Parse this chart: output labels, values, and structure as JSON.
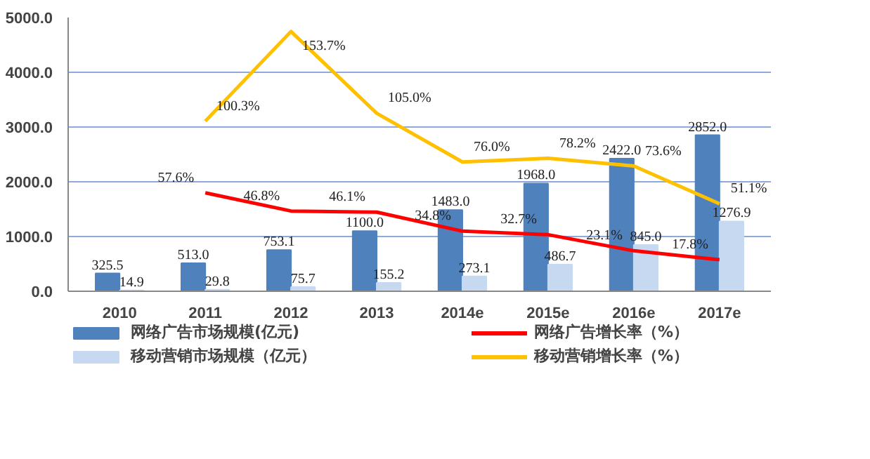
{
  "chart_data": {
    "type": "bar",
    "categories": [
      "2010",
      "2011",
      "2012",
      "2013",
      "2014e",
      "2015e",
      "2016e",
      "2017e"
    ],
    "series": [
      {
        "name": "网络广告市场规模(亿元)",
        "color": "#4f81bd",
        "values": [
          325.5,
          513.0,
          753.1,
          1100.0,
          1483.0,
          1968.0,
          2422.0,
          2852.0
        ],
        "value_labels": [
          "325.5",
          "513.0",
          "753.1",
          "1100.0",
          "1483.0",
          "1968.0",
          "2422.0",
          "2852.0"
        ]
      },
      {
        "name": "移动营销市场规模（亿元）",
        "color": "#c6d9f1",
        "values": [
          14.9,
          29.8,
          75.7,
          155.2,
          273.1,
          486.7,
          845.0,
          1276.9
        ],
        "value_labels": [
          "14.9",
          "29.8",
          "75.7",
          "155.2",
          "273.1",
          "486.7",
          "845.0",
          "1276.9"
        ]
      },
      {
        "name": "网络广告增长率（%）",
        "type": "line",
        "axis": "y2",
        "color": "#ff0000",
        "values": [
          null,
          57.6,
          46.8,
          46.1,
          34.8,
          32.7,
          23.1,
          17.8
        ],
        "value_labels": [
          null,
          "57.6%",
          "46.8%",
          "46.1%",
          "34.8%",
          "32.7%",
          "23.1%",
          "17.8%"
        ]
      },
      {
        "name": "移动营销增长率（%）",
        "type": "line",
        "axis": "y2",
        "color": "#ffc000",
        "values": [
          null,
          100.3,
          153.7,
          105.0,
          76.0,
          78.2,
          73.6,
          51.1
        ],
        "value_labels": [
          null,
          "100.3%",
          "153.7%",
          "105.0%",
          "76.0%",
          "78.2%",
          "73.6%",
          "51.1%"
        ]
      }
    ],
    "ylim": [
      0,
      5000
    ],
    "yticks": [
      {
        "value": 0,
        "label": "0.0"
      },
      {
        "value": 1000,
        "label": "1000.0"
      },
      {
        "value": 2000,
        "label": "2000.0"
      },
      {
        "value": 3000,
        "label": "3000.0"
      },
      {
        "value": 4000,
        "label": "4000.0"
      },
      {
        "value": 5000,
        "label": "5000.0"
      }
    ],
    "y2lim": [
      -1,
      162
    ],
    "tick_labels": "xy",
    "grid": "y",
    "legend": "bottom"
  }
}
